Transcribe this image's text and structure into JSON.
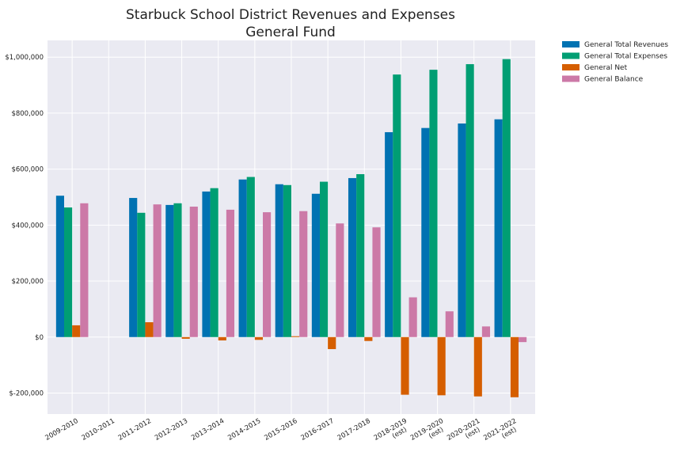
{
  "chart_data": {
    "type": "bar",
    "title": "Starbuck School District Revenues and Expenses",
    "subtitle": "General Fund",
    "xlabel": "",
    "ylabel": "",
    "ylim": [
      -275000,
      1060000
    ],
    "grid": true,
    "legend_position": "outside-top-right",
    "y_ticks": [
      -200000,
      0,
      200000,
      400000,
      600000,
      800000,
      1000000
    ],
    "y_tick_labels": [
      "$-200,000",
      "$0",
      "$200,000",
      "$400,000",
      "$600,000",
      "$800,000",
      "$1,000,000"
    ],
    "categories": [
      [
        "2009-2010"
      ],
      [
        "2010-2011"
      ],
      [
        "2011-2012"
      ],
      [
        "2012-2013"
      ],
      [
        "2013-2014"
      ],
      [
        "2014-2015"
      ],
      [
        "2015-2016"
      ],
      [
        "2016-2017"
      ],
      [
        "2017-2018"
      ],
      [
        "2018-2019",
        "(est)"
      ],
      [
        "2019-2020",
        "(est)"
      ],
      [
        "2020-2021",
        "(est)"
      ],
      [
        "2021-2022",
        "(est)"
      ]
    ],
    "series": [
      {
        "name": "General Total Revenues",
        "color": "#0072B2",
        "values": [
          505000,
          null,
          497000,
          472000,
          520000,
          563000,
          546000,
          512000,
          568000,
          732000,
          747000,
          763000,
          778000
        ]
      },
      {
        "name": "General Total Expenses",
        "color": "#009E73",
        "values": [
          463000,
          null,
          444000,
          478000,
          532000,
          572000,
          543000,
          555000,
          582000,
          938000,
          955000,
          975000,
          993000
        ]
      },
      {
        "name": "General Net",
        "color": "#D55E00",
        "values": [
          42000,
          null,
          53000,
          -6000,
          -12000,
          -10000,
          3000,
          -43000,
          -14000,
          -206000,
          -208000,
          -212000,
          -215000
        ]
      },
      {
        "name": "General Balance",
        "color": "#CC79A7",
        "values": [
          478000,
          null,
          474000,
          466000,
          455000,
          446000,
          450000,
          406000,
          392000,
          142000,
          92000,
          38000,
          -18000
        ]
      }
    ]
  }
}
